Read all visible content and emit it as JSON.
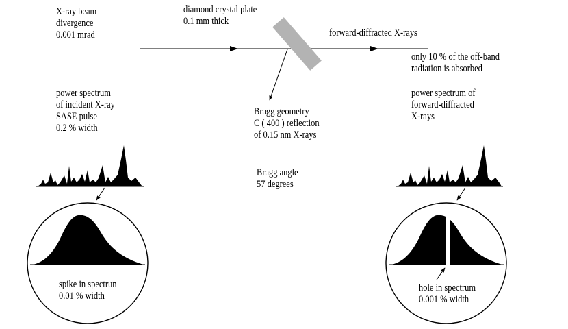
{
  "labels": {
    "beam_divergence": [
      "X-ray beam",
      "divergence",
      "0.001 mrad"
    ],
    "crystal_plate": [
      "diamond crystal plate",
      "0.1 mm thick"
    ],
    "forward_diffracted": [
      "forward-diffracted X-rays"
    ],
    "absorbed_note": [
      "only 10 % of the off-band",
      "radiation is absorbed"
    ],
    "incident_spectrum": [
      "power spectrum",
      "of incident X-ray",
      "SASE pulse",
      "0.2 % width"
    ],
    "bragg_geometry": [
      "Bragg geometry",
      "C ( 400 ) reflection",
      "of 0.15 nm X-rays"
    ],
    "bragg_angle": [
      "Bragg angle",
      "57 degrees"
    ],
    "forward_spectrum": [
      "power spectrum of",
      "forward-diffracted",
      "X-rays"
    ],
    "spike": [
      "spike in spectrun",
      "0.01 % width"
    ],
    "hole": [
      "hole in spectrum",
      "0.001 % width"
    ]
  },
  "colors": {
    "ink": "#000000",
    "crystal": "#b3b3b3",
    "background": "#ffffff"
  }
}
